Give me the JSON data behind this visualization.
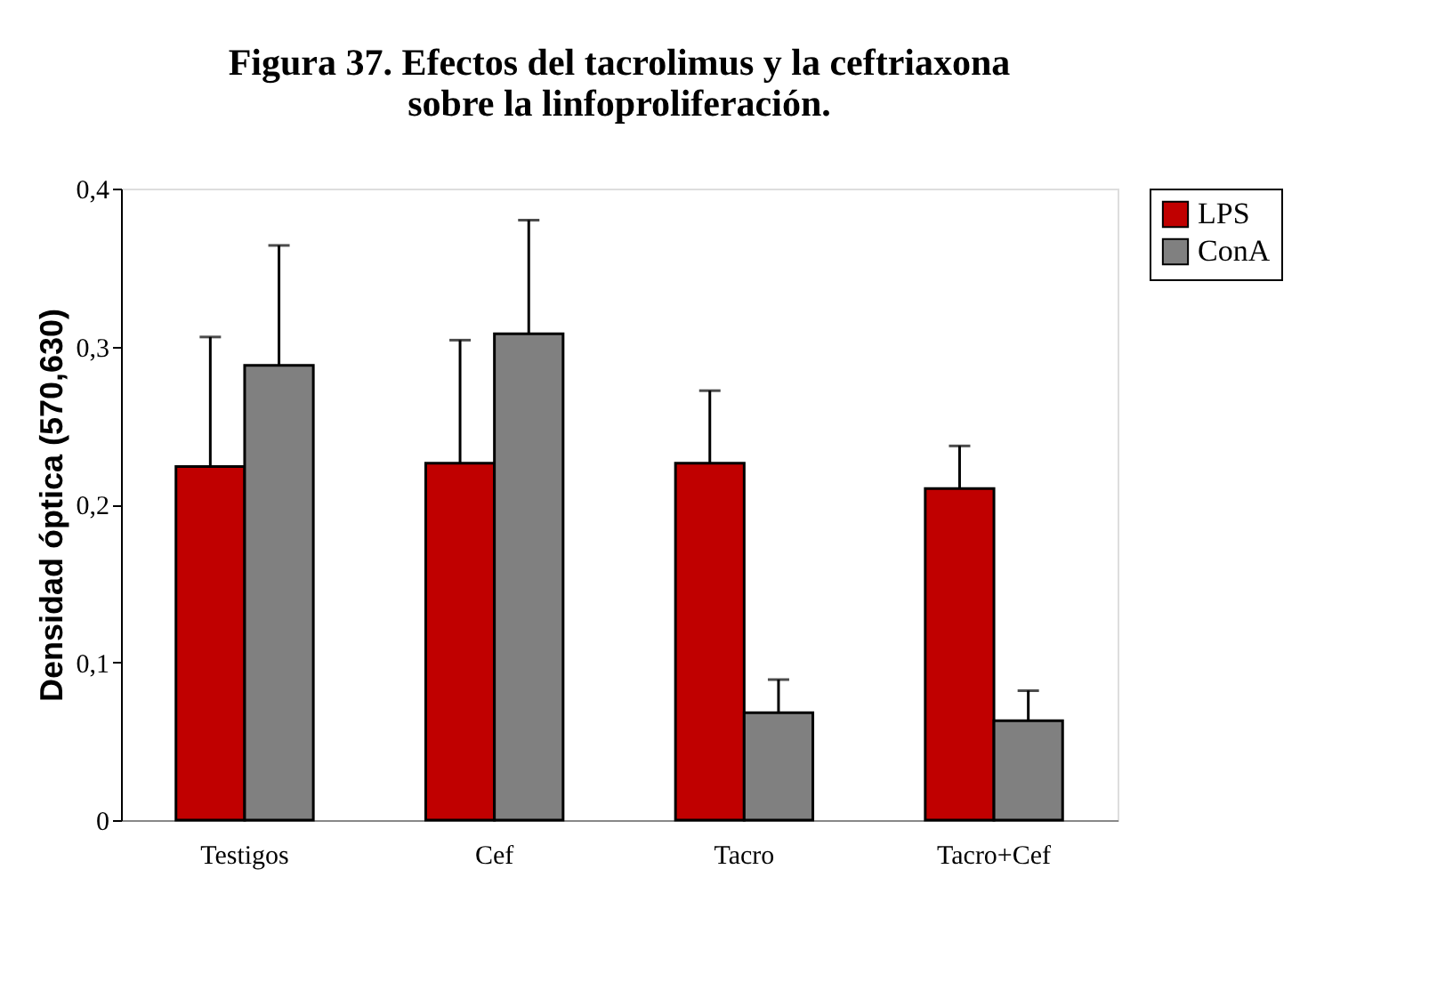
{
  "chart_data": {
    "type": "bar",
    "title": "Figura 37. Efectos del tacrolimus y la ceftriaxona sobre la linfoproliferación.",
    "ylabel": "Densidad óptica (570,630)",
    "categories": [
      "Testigos",
      "Cef",
      "Tacro",
      "Tacro+Cef"
    ],
    "series": [
      {
        "name": "LPS",
        "color": "#c00000",
        "values": [
          0.224,
          0.226,
          0.226,
          0.21
        ],
        "errors": [
          [
            0.224,
            0.306
          ],
          [
            0.226,
            0.304
          ],
          [
            0.226,
            0.272
          ],
          [
            0.21,
            0.237
          ]
        ]
      },
      {
        "name": "ConA",
        "color": "#808080",
        "values": [
          0.288,
          0.308,
          0.068,
          0.063
        ],
        "errors": [
          [
            0.288,
            0.364
          ],
          [
            0.308,
            0.38
          ],
          [
            0.068,
            0.089
          ],
          [
            0.063,
            0.082
          ]
        ]
      }
    ],
    "ylim": [
      0,
      0.4
    ],
    "yticks": [
      0,
      {
        "value": 0.1,
        "label": "0,1"
      },
      {
        "value": 0.2,
        "label": "0,2"
      },
      {
        "value": 0.3,
        "label": "0,3"
      },
      {
        "value": 0.4,
        "label": "0,4"
      }
    ],
    "grid": false,
    "legend": "right"
  }
}
